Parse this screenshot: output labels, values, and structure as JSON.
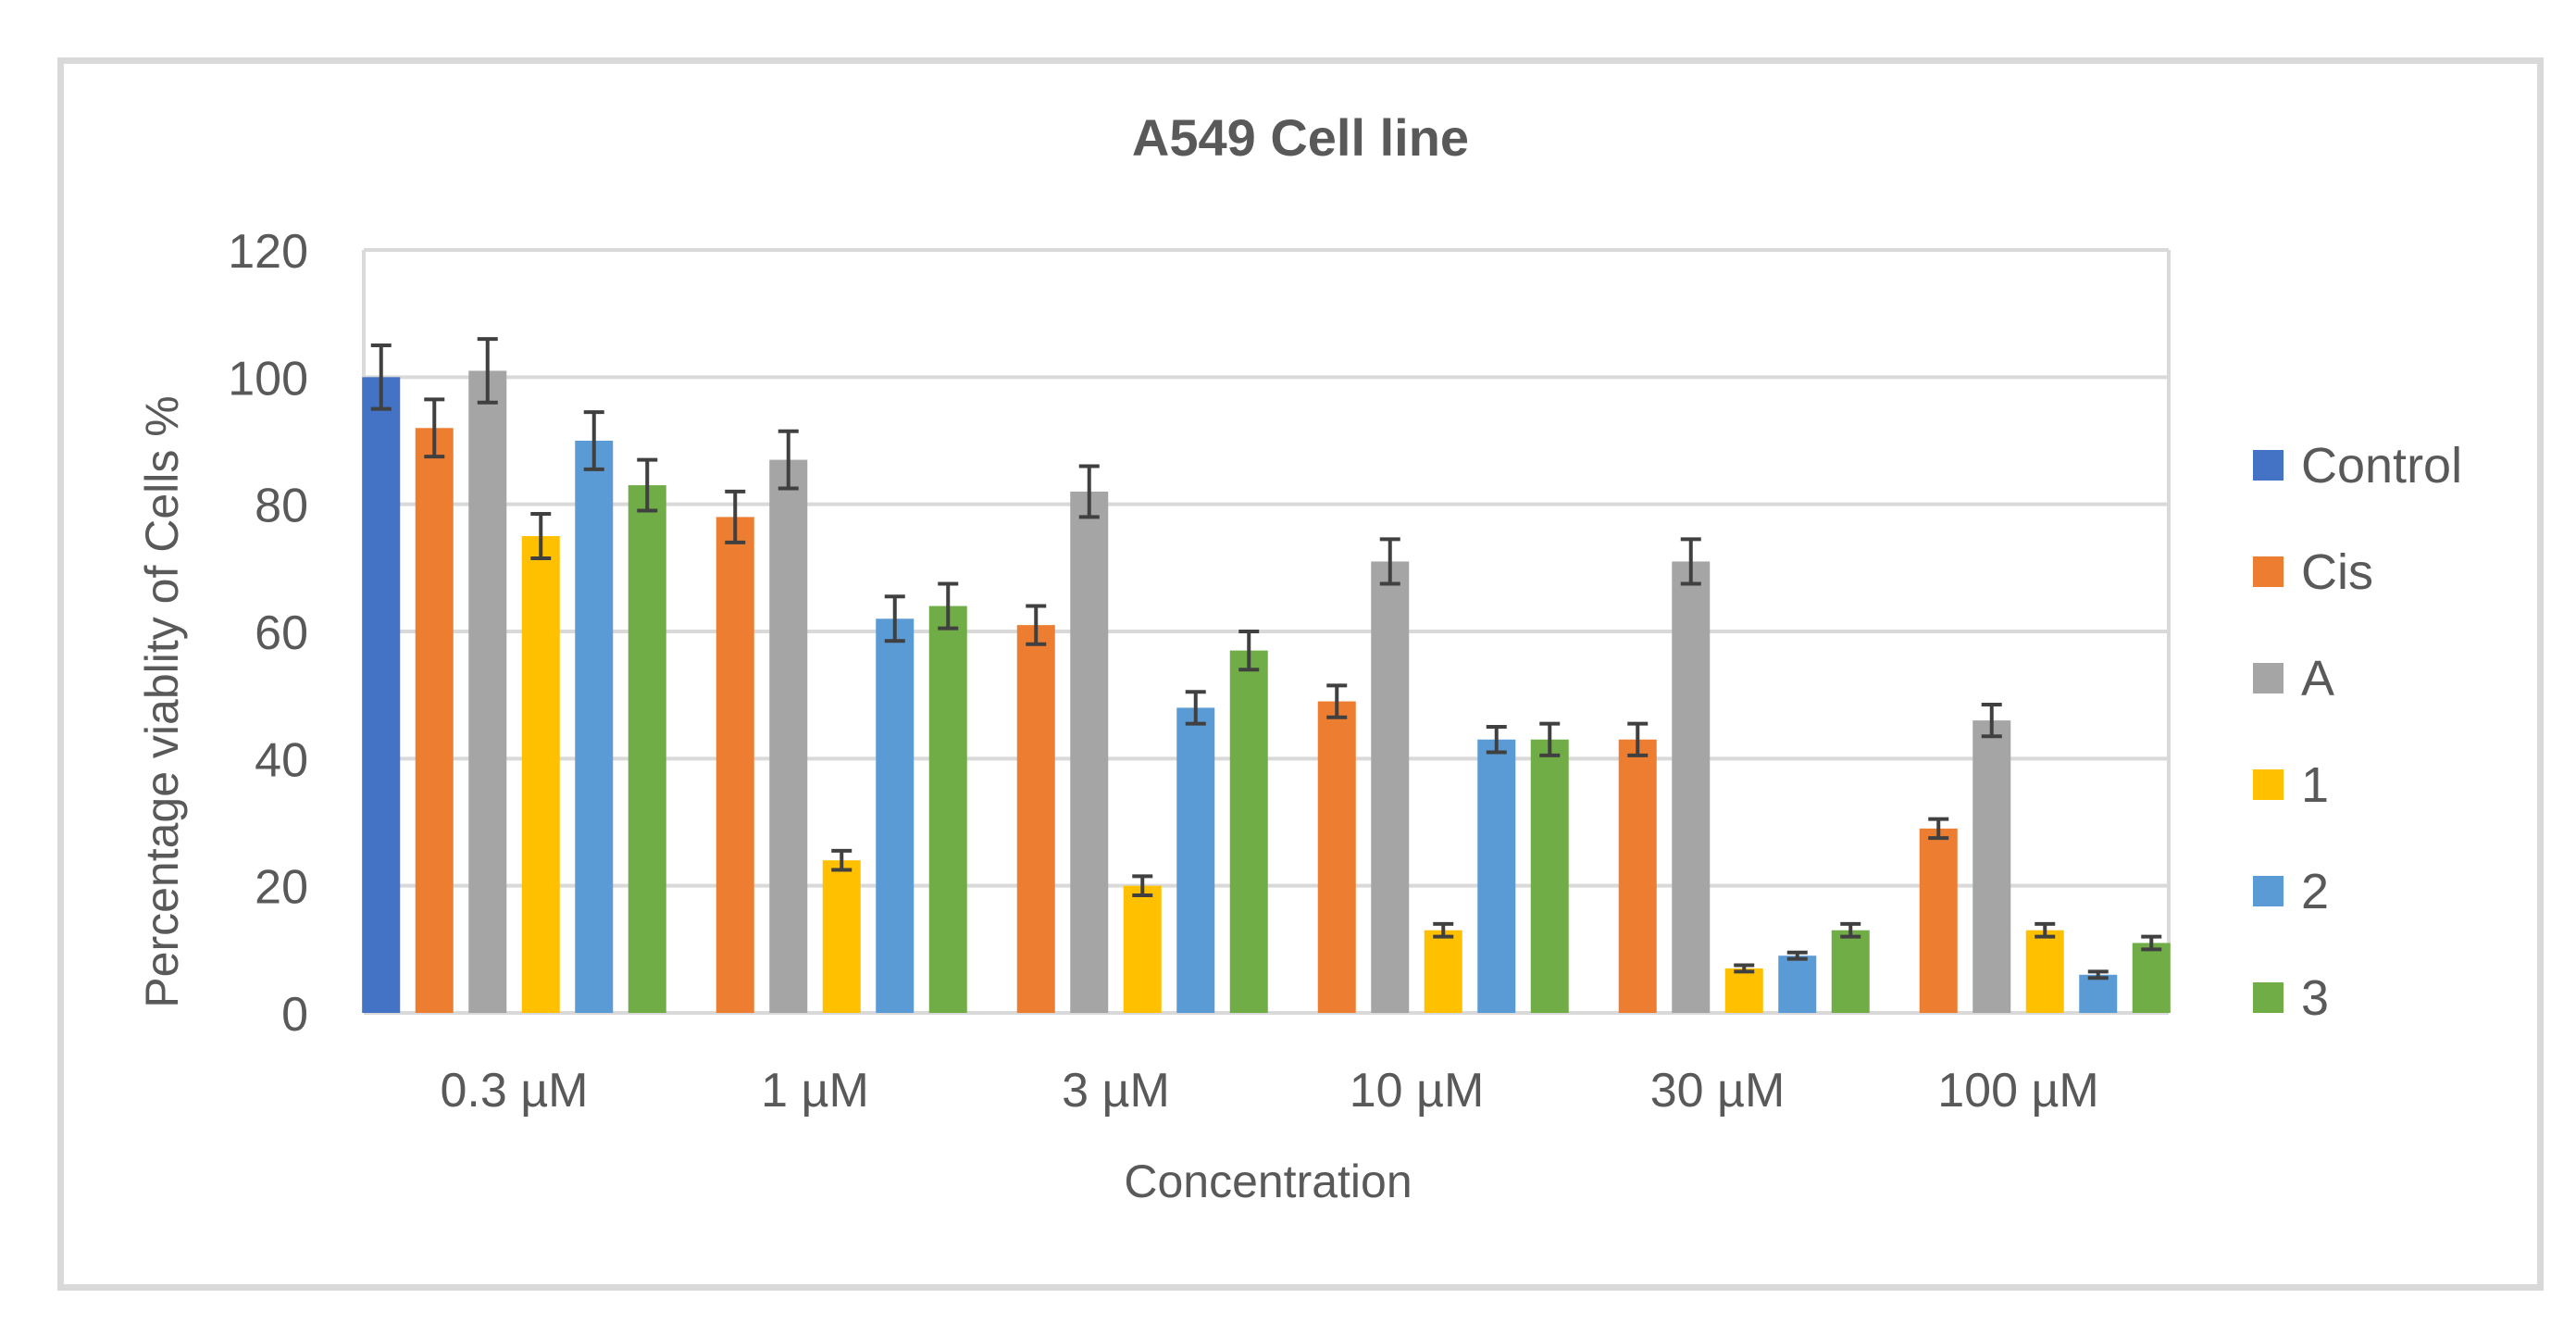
{
  "chart_data": {
    "type": "bar",
    "title": "A549 Cell line",
    "xlabel": "Concentration",
    "ylabel": "Percentage viablity of Cells %",
    "ylim": [
      0,
      120
    ],
    "yticks": [
      0,
      20,
      40,
      60,
      80,
      100,
      120
    ],
    "grid": true,
    "legend_position": "right",
    "categories": [
      "0.3 µM",
      "1 µM",
      "3 µM",
      "10 µM",
      "30 µM",
      "100 µM"
    ],
    "series": [
      {
        "name": "Control",
        "color": "#4472C4",
        "values": [
          100,
          null,
          null,
          null,
          null,
          null
        ],
        "errors": [
          5,
          null,
          null,
          null,
          null,
          null
        ]
      },
      {
        "name": "Cis",
        "color": "#ED7D31",
        "values": [
          92,
          78,
          61,
          49,
          43,
          29
        ],
        "errors": [
          4.5,
          4,
          3,
          2.5,
          2.5,
          1.5
        ]
      },
      {
        "name": "A",
        "color": "#A5A5A5",
        "values": [
          101,
          87,
          82,
          71,
          71,
          46
        ],
        "errors": [
          5,
          4.5,
          4,
          3.5,
          3.5,
          2.5
        ]
      },
      {
        "name": "1",
        "color": "#FFC000",
        "values": [
          75,
          24,
          20,
          13,
          7,
          13
        ],
        "errors": [
          3.5,
          1.5,
          1.5,
          1,
          0.5,
          1
        ]
      },
      {
        "name": "2",
        "color": "#5B9BD5",
        "values": [
          90,
          62,
          48,
          43,
          9,
          6
        ],
        "errors": [
          4.5,
          3.5,
          2.5,
          2,
          0.5,
          0.5
        ]
      },
      {
        "name": "3",
        "color": "#70AD47",
        "values": [
          83,
          64,
          57,
          43,
          13,
          11
        ],
        "errors": [
          4,
          3.5,
          3,
          2.5,
          1,
          1
        ]
      }
    ]
  }
}
